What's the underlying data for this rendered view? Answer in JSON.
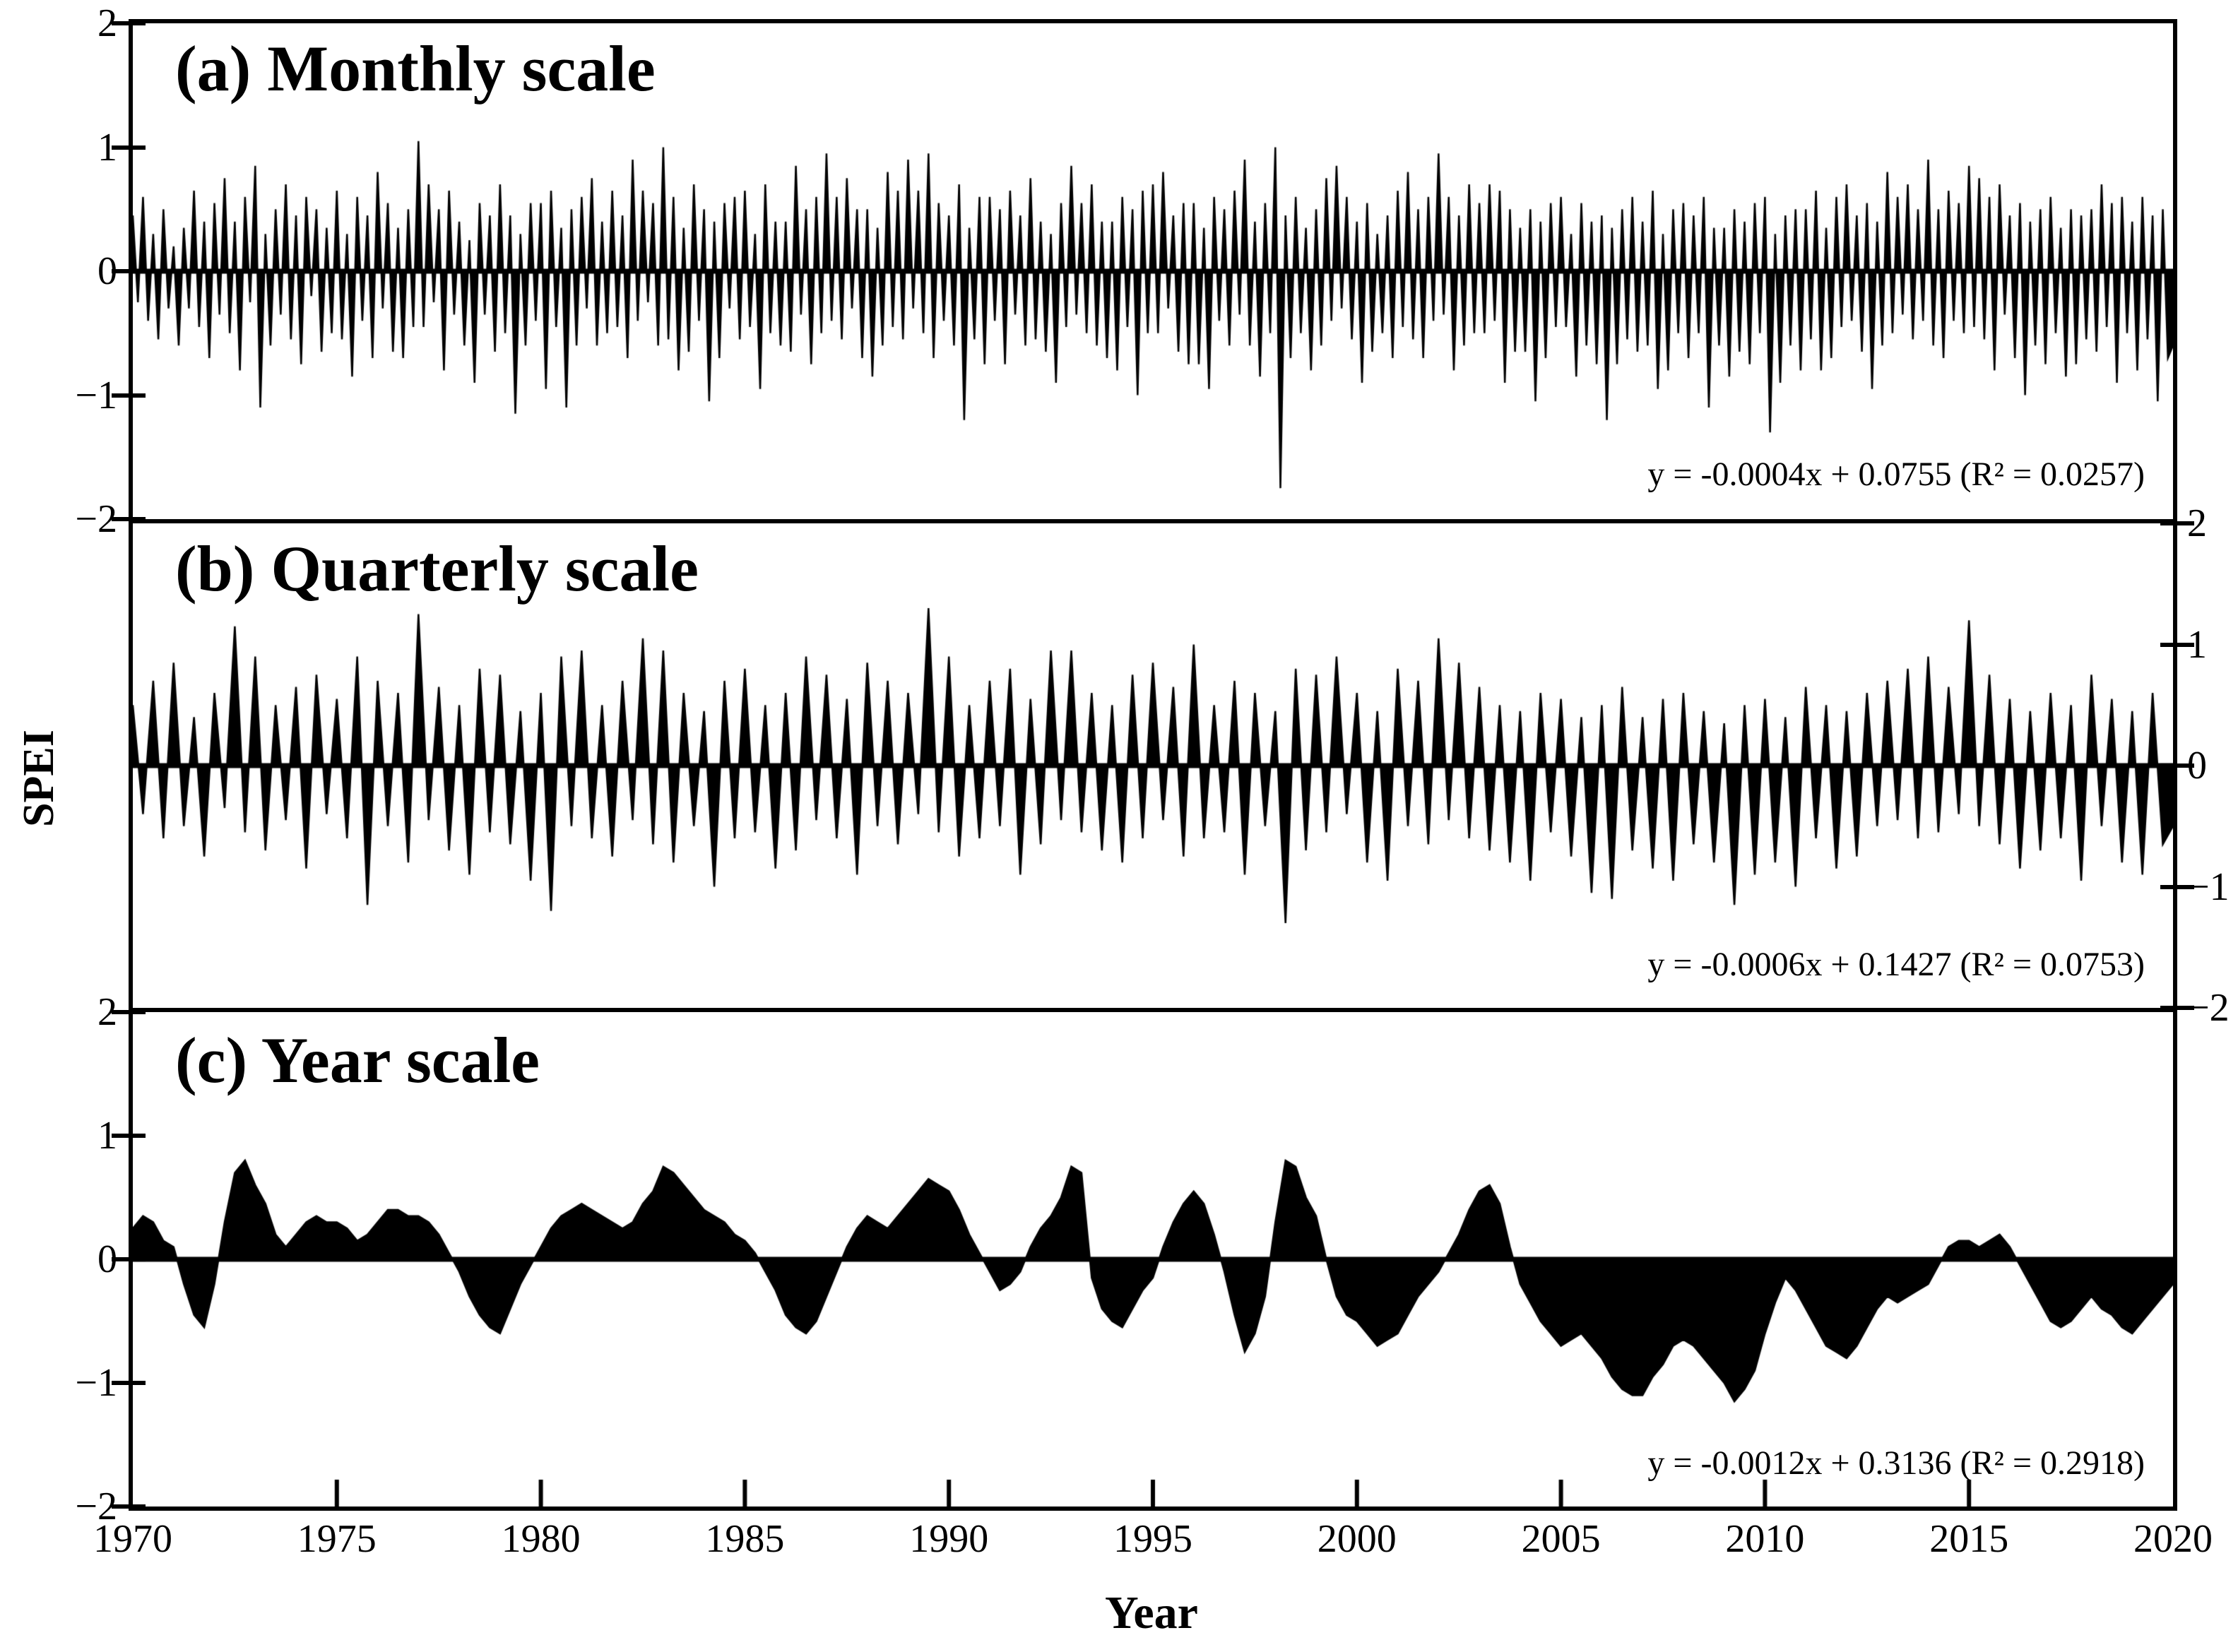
{
  "figure": {
    "ylabel": "SPEI",
    "xlabel": "Year",
    "background_color": "#ffffff",
    "series_color": "#000000",
    "text_color": "#000000",
    "y_ticks": [
      {
        "label": "2",
        "value": 2
      },
      {
        "label": "1",
        "value": 1
      },
      {
        "label": "0",
        "value": 0
      },
      {
        "label": "−1",
        "value": -1
      },
      {
        "label": "−2",
        "value": -2
      }
    ],
    "x_ticks": [
      {
        "label": "1970",
        "value": 1970
      },
      {
        "label": "1975",
        "value": 1975
      },
      {
        "label": "1980",
        "value": 1980
      },
      {
        "label": "1985",
        "value": 1985
      },
      {
        "label": "1990",
        "value": 1990
      },
      {
        "label": "1995",
        "value": 1995
      },
      {
        "label": "2000",
        "value": 2000
      },
      {
        "label": "2005",
        "value": 2005
      },
      {
        "label": "2010",
        "value": 2010
      },
      {
        "label": "2015",
        "value": 2015
      },
      {
        "label": "2020",
        "value": 2020
      }
    ]
  },
  "chart_data": [
    {
      "panel": "a",
      "type": "area",
      "title": "(a) Monthly scale",
      "equation": "y = -0.0004x + 0.0755 (R² = 0.0257)",
      "trend": {
        "slope": -0.0004,
        "intercept": 0.0755,
        "r2": 0.0257
      },
      "xlim": [
        1970,
        2020
      ],
      "ylim": [
        -2,
        2
      ],
      "y_axis_side": "left",
      "x_start": 1970,
      "x_step": 0.125,
      "values": [
        0.45,
        -0.25,
        0.6,
        -0.4,
        0.3,
        -0.55,
        0.5,
        -0.3,
        0.2,
        -0.6,
        0.35,
        -0.3,
        0.65,
        -0.45,
        0.4,
        -0.7,
        0.55,
        -0.35,
        0.75,
        -0.5,
        0.4,
        -0.8,
        0.6,
        -0.25,
        0.85,
        -1.1,
        0.3,
        -0.6,
        0.5,
        -0.35,
        0.7,
        -0.55,
        0.45,
        -0.75,
        0.6,
        -0.2,
        0.5,
        -0.65,
        0.35,
        -0.5,
        0.65,
        -0.55,
        0.3,
        -0.85,
        0.6,
        -0.4,
        0.45,
        -0.7,
        0.8,
        -0.3,
        0.55,
        -0.65,
        0.35,
        -0.7,
        0.5,
        -0.45,
        1.05,
        -0.45,
        0.7,
        -0.25,
        0.5,
        -0.8,
        0.65,
        -0.35,
        0.4,
        -0.6,
        0.25,
        -0.9,
        0.55,
        -0.35,
        0.45,
        -0.65,
        0.7,
        -0.5,
        0.45,
        -1.15,
        0.3,
        -0.6,
        0.55,
        -0.4,
        0.55,
        -0.95,
        0.65,
        -0.45,
        0.35,
        -1.1,
        0.5,
        -0.6,
        0.6,
        -0.3,
        0.75,
        -0.6,
        0.4,
        -0.5,
        0.65,
        -0.45,
        0.45,
        -0.7,
        0.9,
        -0.4,
        0.65,
        -0.25,
        0.55,
        -0.6,
        1.0,
        -0.55,
        0.6,
        -0.8,
        0.35,
        -0.65,
        0.7,
        -0.4,
        0.5,
        -1.05,
        0.4,
        -0.7,
        0.55,
        -0.3,
        0.6,
        -0.55,
        0.65,
        -0.45,
        0.3,
        -0.95,
        0.7,
        -0.5,
        0.4,
        -0.6,
        0.4,
        -0.65,
        0.85,
        -0.35,
        0.5,
        -0.75,
        0.6,
        -0.5,
        0.95,
        -0.4,
        0.6,
        -0.55,
        0.75,
        -0.3,
        0.5,
        -0.7,
        0.5,
        -0.85,
        0.35,
        -0.6,
        0.8,
        -0.45,
        0.65,
        -0.55,
        0.9,
        -0.3,
        0.65,
        -0.5,
        0.95,
        -0.7,
        0.55,
        -0.4,
        0.45,
        -0.6,
        0.7,
        -1.2,
        0.35,
        -0.55,
        0.6,
        -0.75,
        0.6,
        -0.4,
        0.5,
        -0.75,
        0.65,
        -0.35,
        0.45,
        -0.6,
        0.75,
        -0.55,
        0.4,
        -0.65,
        0.3,
        -0.9,
        0.55,
        -0.45,
        0.85,
        -0.35,
        0.55,
        -0.5,
        0.7,
        -0.6,
        0.4,
        -0.7,
        0.4,
        -0.8,
        0.6,
        -0.45,
        0.5,
        -1.0,
        0.65,
        -0.5,
        0.7,
        -0.5,
        0.8,
        -0.3,
        0.45,
        -0.65,
        0.55,
        -0.75,
        0.55,
        -0.75,
        0.35,
        -0.95,
        0.6,
        -0.4,
        0.5,
        -0.6,
        0.65,
        -0.35,
        0.9,
        -0.6,
        0.4,
        -0.85,
        0.55,
        -0.5,
        1.0,
        -1.75,
        0.45,
        -0.7,
        0.6,
        -0.5,
        0.35,
        -0.8,
        0.5,
        -0.6,
        0.75,
        -0.4,
        0.85,
        -0.3,
        0.6,
        -0.55,
        0.4,
        -0.9,
        0.55,
        -0.65,
        0.3,
        -0.5,
        0.45,
        -0.7,
        0.65,
        -0.45,
        0.8,
        -0.55,
        0.5,
        -0.7,
        0.6,
        -0.4,
        0.95,
        -0.35,
        0.6,
        -0.8,
        0.45,
        -0.6,
        0.7,
        -0.5,
        0.55,
        -0.5,
        0.7,
        -0.4,
        0.65,
        -0.9,
        0.5,
        -0.65,
        0.35,
        -0.65,
        0.5,
        -1.05,
        0.4,
        -0.7,
        0.55,
        -0.45,
        0.6,
        -0.45,
        0.3,
        -0.85,
        0.55,
        -0.6,
        0.4,
        -0.75,
        0.45,
        -1.2,
        0.35,
        -0.75,
        0.5,
        -0.55,
        0.6,
        -0.65,
        0.4,
        -0.6,
        0.65,
        -0.95,
        0.3,
        -0.8,
        0.5,
        -0.5,
        0.55,
        -0.7,
        0.45,
        -0.5,
        0.6,
        -1.1,
        0.35,
        -0.6,
        0.35,
        -0.85,
        0.5,
        -0.65,
        0.4,
        -0.75,
        0.55,
        -0.5,
        0.6,
        -1.3,
        0.3,
        -0.9,
        0.45,
        -0.6,
        0.5,
        -0.8,
        0.5,
        -0.55,
        0.65,
        -0.8,
        0.35,
        -0.7,
        0.6,
        -0.45,
        0.7,
        -0.4,
        0.45,
        -0.65,
        0.55,
        -0.95,
        0.4,
        -0.6,
        0.8,
        -0.5,
        0.6,
        -0.35,
        0.7,
        -0.55,
        0.5,
        -0.4,
        0.9,
        -0.6,
        0.5,
        -0.7,
        0.65,
        -0.4,
        0.55,
        -0.5,
        0.85,
        -0.45,
        0.75,
        -0.55,
        0.6,
        -0.8,
        0.7,
        -0.35,
        0.45,
        -0.7,
        0.55,
        -1.0,
        0.4,
        -0.6,
        0.5,
        -0.75,
        0.6,
        -0.5,
        0.35,
        -0.85,
        0.5,
        -0.75,
        0.45,
        -0.55,
        0.5,
        -0.65,
        0.7,
        -0.45,
        0.55,
        -0.9,
        0.6,
        -0.5,
        0.4,
        -0.8,
        0.6,
        -0.55,
        0.45,
        -1.05,
        0.5,
        -0.7,
        -0.6
      ]
    },
    {
      "panel": "b",
      "type": "area",
      "title": "(b) Quarterly scale",
      "equation": "y = -0.0006x + 0.1427 (R² = 0.0753)",
      "trend": {
        "slope": -0.0006,
        "intercept": 0.1427,
        "r2": 0.0753
      },
      "xlim": [
        1970,
        2020
      ],
      "ylim": [
        -2,
        2
      ],
      "y_axis_side": "right",
      "x_start": 1970,
      "x_step": 0.25,
      "values": [
        0.5,
        -0.4,
        0.7,
        -0.6,
        0.85,
        -0.5,
        0.4,
        -0.75,
        0.6,
        -0.35,
        1.15,
        -0.55,
        0.9,
        -0.7,
        0.5,
        -0.45,
        0.65,
        -0.85,
        0.75,
        -0.4,
        0.55,
        -0.6,
        0.9,
        -1.15,
        0.7,
        -0.5,
        0.6,
        -0.8,
        1.25,
        -0.45,
        0.65,
        -0.7,
        0.5,
        -0.9,
        0.8,
        -0.55,
        0.75,
        -0.65,
        0.45,
        -0.95,
        0.6,
        -1.2,
        0.9,
        -0.5,
        0.95,
        -0.6,
        0.5,
        -0.75,
        0.7,
        -0.45,
        1.05,
        -0.65,
        0.95,
        -0.8,
        0.6,
        -0.5,
        0.45,
        -1.0,
        0.7,
        -0.6,
        0.8,
        -0.55,
        0.5,
        -0.85,
        0.6,
        -0.7,
        0.9,
        -0.45,
        0.75,
        -0.6,
        0.55,
        -0.9,
        0.85,
        -0.5,
        0.7,
        -0.65,
        0.6,
        -0.4,
        1.3,
        -0.55,
        0.9,
        -0.75,
        0.5,
        -0.6,
        0.7,
        -0.5,
        0.8,
        -0.9,
        0.55,
        -0.65,
        0.95,
        -0.45,
        0.95,
        -0.55,
        0.6,
        -0.7,
        0.5,
        -0.8,
        0.75,
        -0.6,
        0.85,
        -0.45,
        0.65,
        -0.75,
        1.0,
        -0.6,
        0.5,
        -0.55,
        0.7,
        -0.9,
        0.6,
        -0.5,
        0.45,
        -1.3,
        0.8,
        -0.7,
        0.75,
        -0.55,
        0.9,
        -0.4,
        0.6,
        -0.8,
        0.45,
        -0.95,
        0.8,
        -0.5,
        0.7,
        -0.65,
        1.05,
        -0.45,
        0.85,
        -0.6,
        0.65,
        -0.7,
        0.5,
        -0.8,
        0.45,
        -0.95,
        0.6,
        -0.55,
        0.55,
        -0.75,
        0.4,
        -1.05,
        0.5,
        -1.1,
        0.65,
        -0.7,
        0.4,
        -0.85,
        0.55,
        -0.95,
        0.6,
        -0.65,
        0.45,
        -0.8,
        0.35,
        -1.15,
        0.5,
        -0.9,
        0.55,
        -0.8,
        0.4,
        -1.0,
        0.65,
        -0.6,
        0.5,
        -0.85,
        0.45,
        -0.75,
        0.6,
        -0.5,
        0.7,
        -0.45,
        0.8,
        -0.6,
        0.9,
        -0.55,
        0.65,
        -0.4,
        1.2,
        -0.5,
        0.75,
        -0.65,
        0.55,
        -0.85,
        0.45,
        -0.7,
        0.6,
        -0.6,
        0.5,
        -0.95,
        0.75,
        -0.5,
        0.55,
        -0.8,
        0.45,
        -0.9,
        0.6,
        -0.65,
        -0.5
      ]
    },
    {
      "panel": "c",
      "type": "area",
      "title": "(c) Year scale",
      "equation": "y = -0.0012x + 0.3136 (R² = 0.2918)",
      "trend": {
        "slope": -0.0012,
        "intercept": 0.3136,
        "r2": 0.2918
      },
      "xlim": [
        1970,
        2020
      ],
      "ylim": [
        -2,
        2
      ],
      "y_axis_side": "left",
      "x_start": 1970,
      "x_step": 0.25,
      "values": [
        0.25,
        0.35,
        0.3,
        0.15,
        0.1,
        -0.2,
        -0.45,
        -0.55,
        -0.2,
        0.3,
        0.7,
        0.8,
        0.6,
        0.45,
        0.2,
        0.1,
        0.2,
        0.3,
        0.35,
        0.3,
        0.3,
        0.25,
        0.15,
        0.2,
        0.3,
        0.4,
        0.4,
        0.35,
        0.35,
        0.3,
        0.2,
        0.05,
        -0.1,
        -0.3,
        -0.45,
        -0.55,
        -0.6,
        -0.4,
        -0.2,
        -0.05,
        0.1,
        0.25,
        0.35,
        0.4,
        0.45,
        0.4,
        0.35,
        0.3,
        0.25,
        0.3,
        0.45,
        0.55,
        0.75,
        0.7,
        0.6,
        0.5,
        0.4,
        0.35,
        0.3,
        0.2,
        0.15,
        0.05,
        -0.1,
        -0.25,
        -0.45,
        -0.55,
        -0.6,
        -0.5,
        -0.3,
        -0.1,
        0.1,
        0.25,
        0.35,
        0.3,
        0.25,
        0.35,
        0.45,
        0.55,
        0.65,
        0.6,
        0.55,
        0.4,
        0.2,
        0.05,
        -0.1,
        -0.25,
        -0.2,
        -0.1,
        0.1,
        0.25,
        0.35,
        0.5,
        0.75,
        0.7,
        -0.15,
        -0.4,
        -0.5,
        -0.55,
        -0.4,
        -0.25,
        -0.15,
        0.1,
        0.3,
        0.45,
        0.55,
        0.45,
        0.2,
        -0.1,
        -0.45,
        -0.75,
        -0.6,
        -0.3,
        0.3,
        0.8,
        0.75,
        0.5,
        0.35,
        0.0,
        -0.3,
        -0.45,
        -0.5,
        -0.6,
        -0.7,
        -0.65,
        -0.6,
        -0.45,
        -0.3,
        -0.2,
        -0.1,
        0.05,
        0.2,
        0.4,
        0.55,
        0.6,
        0.45,
        0.1,
        -0.2,
        -0.35,
        -0.5,
        -0.6,
        -0.7,
        -0.65,
        -0.6,
        -0.7,
        -0.8,
        -0.95,
        -1.05,
        -1.1,
        -1.1,
        -0.95,
        -0.85,
        -0.7,
        -0.65,
        -0.7,
        -0.8,
        -0.9,
        -1.0,
        -1.15,
        -1.05,
        -0.9,
        -0.6,
        -0.35,
        -0.15,
        -0.25,
        -0.4,
        -0.55,
        -0.7,
        -0.75,
        -0.8,
        -0.7,
        -0.55,
        -0.4,
        -0.3,
        -0.35,
        -0.3,
        -0.25,
        -0.2,
        -0.05,
        0.1,
        0.15,
        0.15,
        0.1,
        0.15,
        0.2,
        0.1,
        -0.05,
        -0.2,
        -0.35,
        -0.5,
        -0.55,
        -0.5,
        -0.4,
        -0.3,
        -0.4,
        -0.45,
        -0.55,
        -0.6,
        -0.5,
        -0.4,
        -0.3,
        -0.2
      ]
    }
  ]
}
